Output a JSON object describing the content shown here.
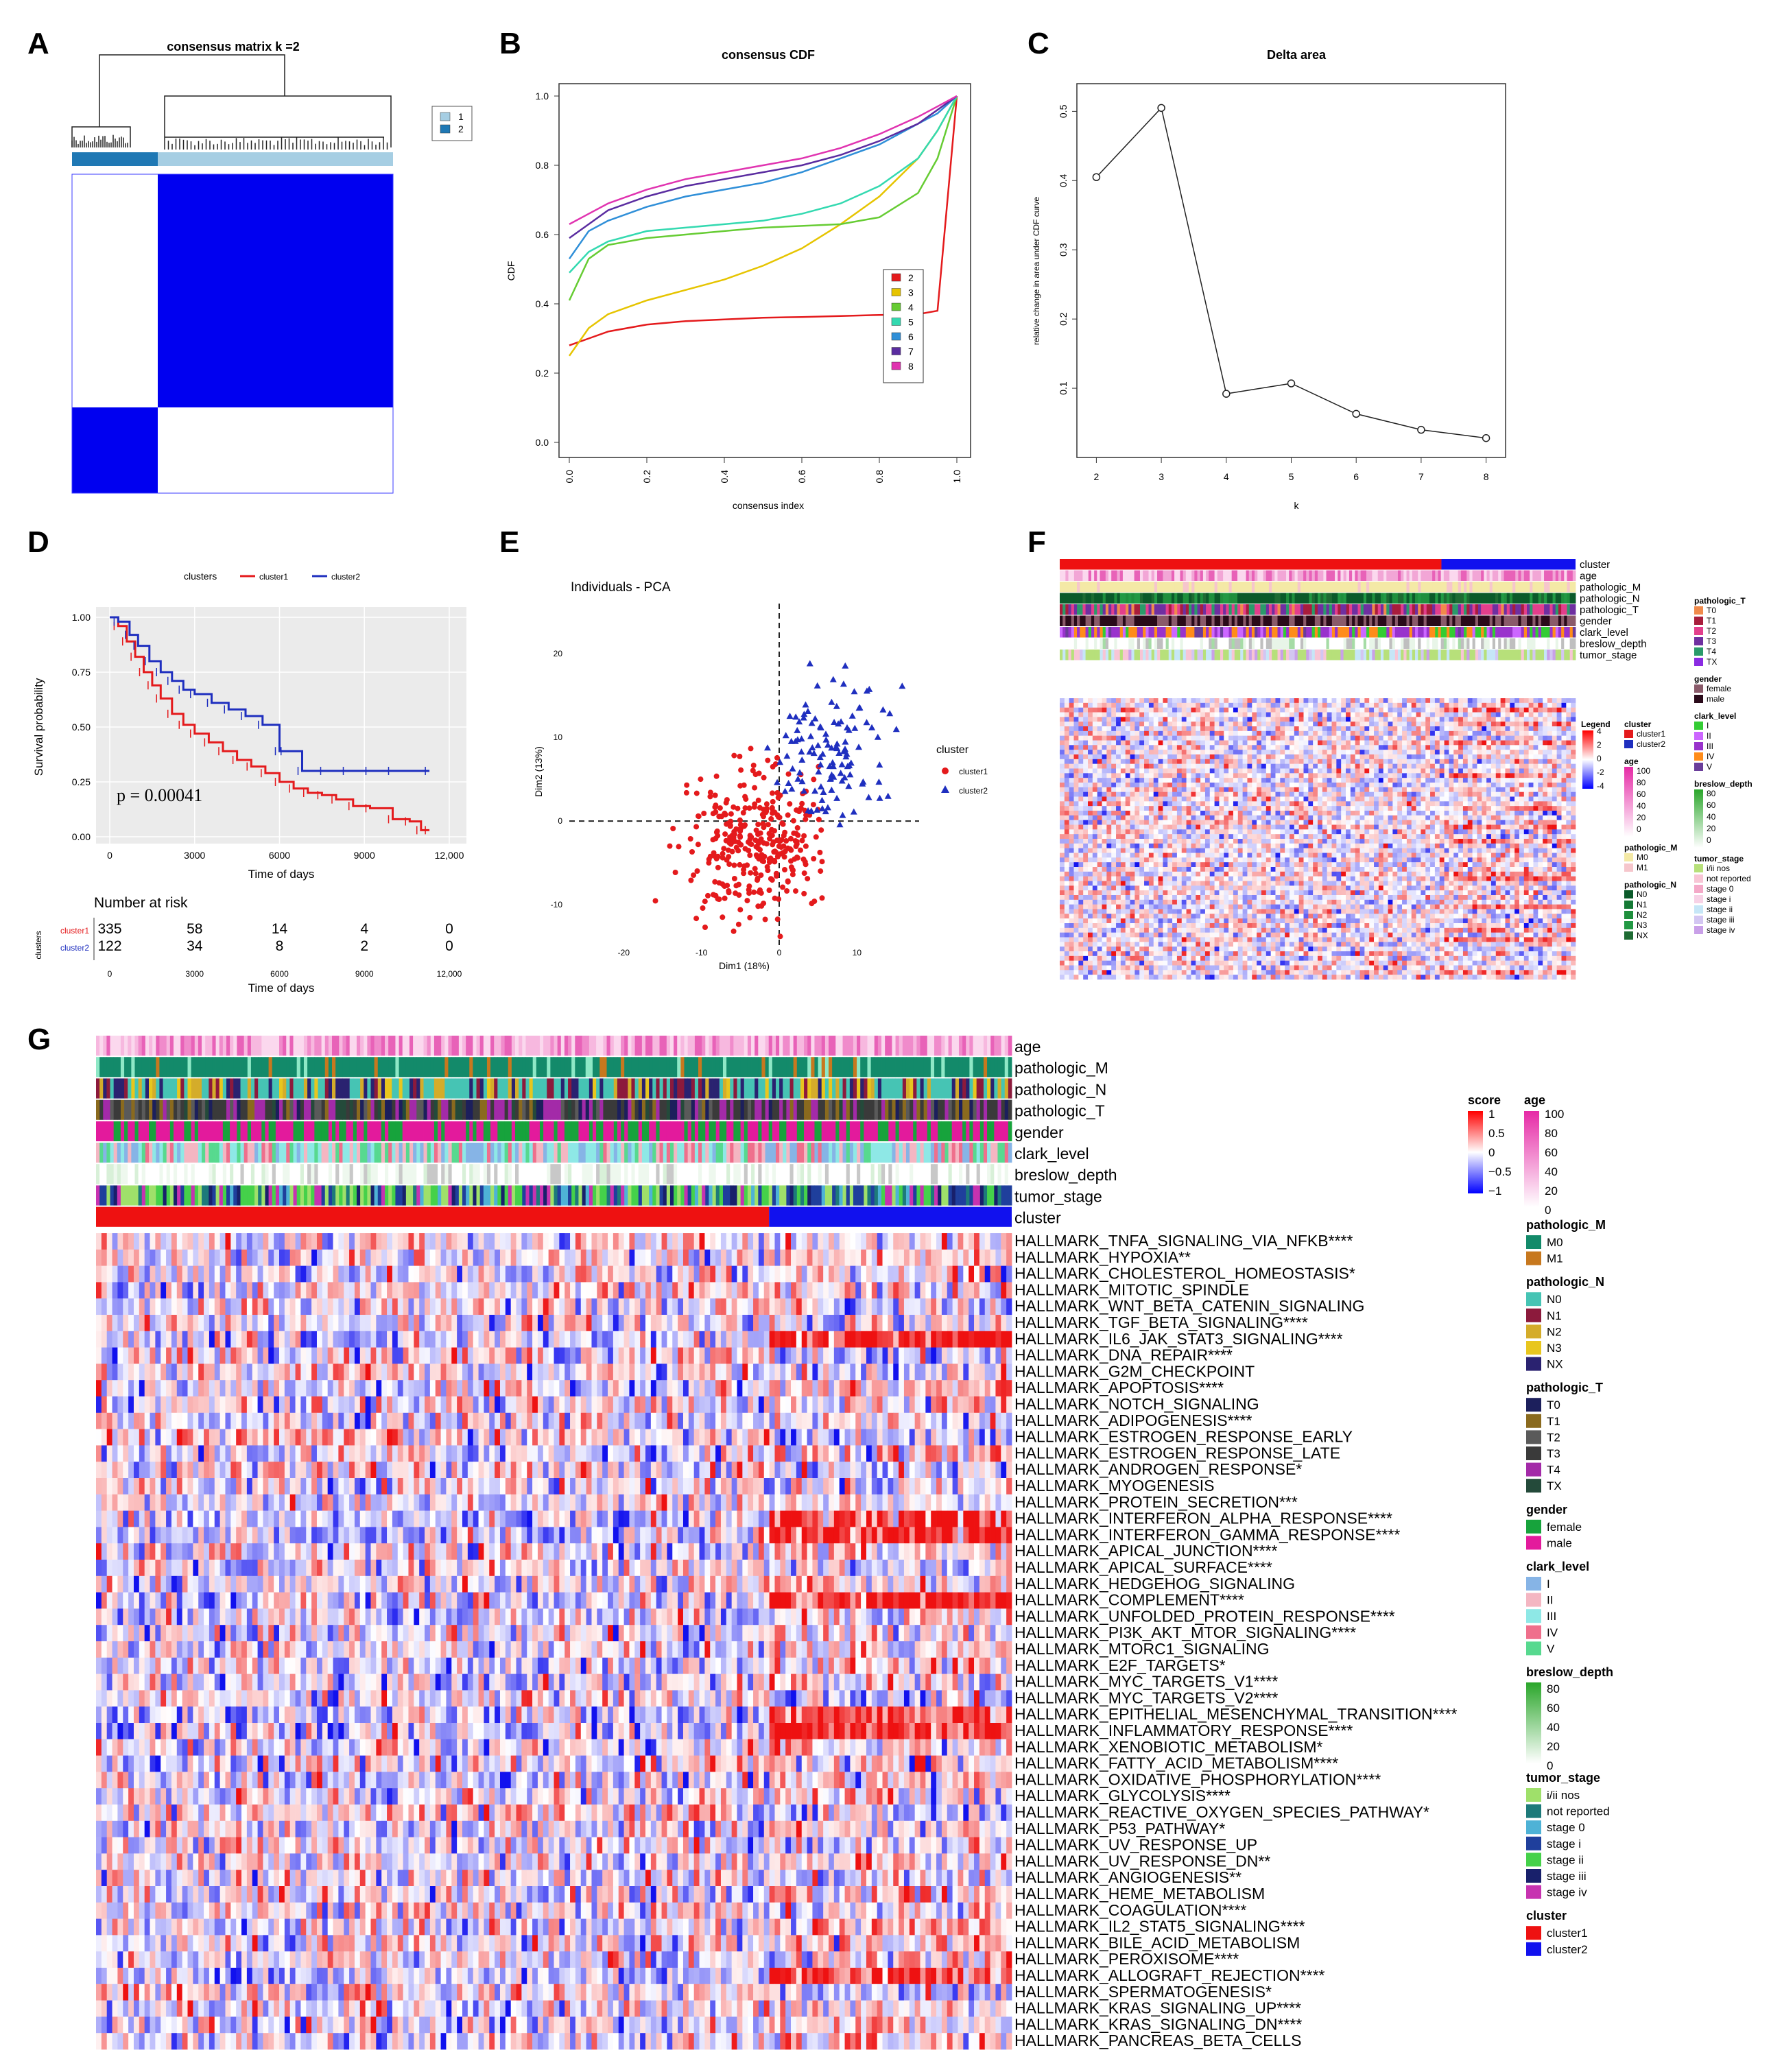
{
  "panel_labels": [
    "A",
    "B",
    "C",
    "D",
    "E",
    "F",
    "G"
  ],
  "chart_data": [
    {
      "panel": "A",
      "type": "heatmap",
      "title": "consensus matrix k =2",
      "legend": [
        "1",
        "2"
      ],
      "colors": {
        "cluster1": "#a6cee3",
        "cluster2": "#1f78b4",
        "fill": "#0000ff"
      }
    },
    {
      "panel": "B",
      "type": "line",
      "title": "consensus CDF",
      "xlabel": "consensus index",
      "ylabel": "CDF",
      "xlim": [
        0,
        1
      ],
      "ylim": [
        0,
        1
      ],
      "xticks": [
        "0.0",
        "0.2",
        "0.4",
        "0.6",
        "0.8",
        "1.0"
      ],
      "yticks": [
        "0.0",
        "0.2",
        "0.4",
        "0.6",
        "0.8",
        "1.0"
      ],
      "x": [
        0,
        0.05,
        0.1,
        0.2,
        0.3,
        0.4,
        0.5,
        0.6,
        0.7,
        0.8,
        0.9,
        0.95,
        1.0
      ],
      "series": [
        {
          "name": "2",
          "color": "#e41a1c",
          "values": [
            0.28,
            0.3,
            0.32,
            0.34,
            0.35,
            0.355,
            0.36,
            0.362,
            0.365,
            0.368,
            0.37,
            0.38,
            1.0
          ]
        },
        {
          "name": "3",
          "color": "#e6c400",
          "values": [
            0.25,
            0.33,
            0.37,
            0.41,
            0.44,
            0.47,
            0.51,
            0.56,
            0.63,
            0.71,
            0.82,
            0.9,
            1.0
          ]
        },
        {
          "name": "4",
          "color": "#66cc33",
          "values": [
            0.41,
            0.53,
            0.57,
            0.59,
            0.6,
            0.61,
            0.62,
            0.625,
            0.63,
            0.65,
            0.72,
            0.82,
            1.0
          ]
        },
        {
          "name": "5",
          "color": "#33d9b0",
          "values": [
            0.49,
            0.55,
            0.58,
            0.61,
            0.62,
            0.63,
            0.64,
            0.66,
            0.69,
            0.74,
            0.82,
            0.9,
            1.0
          ]
        },
        {
          "name": "6",
          "color": "#2f8fd8",
          "values": [
            0.53,
            0.61,
            0.64,
            0.68,
            0.71,
            0.73,
            0.75,
            0.78,
            0.82,
            0.86,
            0.92,
            0.95,
            1.0
          ]
        },
        {
          "name": "7",
          "color": "#5a2ca0",
          "values": [
            0.59,
            0.63,
            0.67,
            0.71,
            0.74,
            0.76,
            0.78,
            0.8,
            0.83,
            0.87,
            0.92,
            0.96,
            1.0
          ]
        },
        {
          "name": "8",
          "color": "#e033b0",
          "values": [
            0.63,
            0.66,
            0.69,
            0.73,
            0.76,
            0.78,
            0.8,
            0.82,
            0.85,
            0.89,
            0.94,
            0.97,
            1.0
          ]
        }
      ]
    },
    {
      "panel": "C",
      "type": "line",
      "title": "Delta area",
      "xlabel": "k",
      "ylabel": "relative change in area under CDF curve",
      "x": [
        2,
        3,
        4,
        5,
        6,
        7,
        8
      ],
      "values": [
        0.405,
        0.505,
        0.092,
        0.107,
        0.063,
        0.04,
        0.028
      ],
      "xlim": [
        1.7,
        8.3
      ],
      "ylim": [
        0.0,
        0.54
      ],
      "yticks": [
        "0.1",
        "0.2",
        "0.3",
        "0.4",
        "0.5"
      ]
    },
    {
      "panel": "D",
      "type": "line",
      "title": "clusters",
      "xlabel": "Time of days",
      "ylabel": "Survival probability",
      "xlim": [
        0,
        12000
      ],
      "ylim": [
        0,
        1
      ],
      "xticks": [
        "0",
        "3000",
        "6000",
        "9000",
        "12,000"
      ],
      "yticks": [
        "0.00",
        "0.25",
        "0.50",
        "0.75",
        "1.00"
      ],
      "pvalue": "p = 0.00041",
      "series": [
        {
          "name": "cluster1",
          "color": "#e41a1c",
          "x": [
            0,
            300,
            600,
            900,
            1200,
            1500,
            1800,
            2200,
            2600,
            3000,
            3500,
            4000,
            4500,
            5000,
            5500,
            6000,
            6500,
            7000,
            7500,
            8000,
            8600,
            9200,
            10000,
            10600,
            11000,
            11300
          ],
          "values": [
            1.0,
            0.96,
            0.89,
            0.82,
            0.75,
            0.69,
            0.63,
            0.56,
            0.51,
            0.47,
            0.43,
            0.39,
            0.35,
            0.32,
            0.29,
            0.25,
            0.22,
            0.2,
            0.19,
            0.17,
            0.14,
            0.13,
            0.08,
            0.07,
            0.03,
            0.03
          ]
        },
        {
          "name": "cluster2",
          "color": "#1f2fbf",
          "x": [
            0,
            300,
            700,
            1000,
            1400,
            1800,
            2200,
            2600,
            3000,
            3600,
            4200,
            4800,
            5400,
            6000,
            6200,
            6800,
            7600,
            8400,
            9200,
            10000,
            11300
          ],
          "values": [
            1.0,
            0.98,
            0.92,
            0.87,
            0.8,
            0.75,
            0.71,
            0.67,
            0.65,
            0.61,
            0.58,
            0.55,
            0.51,
            0.39,
            0.39,
            0.3,
            0.3,
            0.3,
            0.3,
            0.3,
            0.3
          ]
        }
      ],
      "risk_table": {
        "title": "Number at risk",
        "ylabel": "clusters",
        "times": [
          "0",
          "3000",
          "6000",
          "9000",
          "12,000"
        ],
        "rows": [
          {
            "name": "cluster1",
            "values": [
              "335",
              "58",
              "14",
              "4",
              "0"
            ]
          },
          {
            "name": "cluster2",
            "values": [
              "122",
              "34",
              "8",
              "2",
              "0"
            ]
          }
        ]
      }
    },
    {
      "panel": "E",
      "type": "scatter",
      "title": "Individuals - PCA",
      "xlabel": "Dim1 (18%)",
      "ylabel": "Dim2 (13%)",
      "xlim": [
        -27,
        18
      ],
      "ylim": [
        -15,
        26
      ],
      "xticks": [
        "-20",
        "-10",
        "0",
        "10"
      ],
      "yticks": [
        "-10",
        "0",
        "10",
        "20"
      ],
      "legend_title": "cluster",
      "series": [
        {
          "name": "cluster1",
          "color": "#e41a1c",
          "center": [
            -2.5,
            -3.0
          ],
          "spread": [
            4.5,
            4.0
          ],
          "count": 330
        },
        {
          "name": "cluster2",
          "color": "#1f2fbf",
          "center": [
            6.5,
            7.5
          ],
          "spread": [
            4.0,
            4.5
          ],
          "count": 120
        }
      ]
    },
    {
      "panel": "F",
      "type": "heatmap",
      "tracks": [
        "cluster",
        "age",
        "pathologic_M",
        "pathologic_N",
        "pathologic_T",
        "gender",
        "clark_level",
        "breslow_depth",
        "tumor_stage"
      ],
      "legend_title": "Legend",
      "legend_values": [
        "4",
        "2",
        "0",
        "-2",
        "-4"
      ],
      "legends_col1": [
        {
          "title": "cluster",
          "items": [
            {
              "label": "cluster1",
              "color": "#e41a1c"
            },
            {
              "label": "cluster2",
              "color": "#1f2fbf"
            }
          ]
        },
        {
          "title": "age",
          "scale": [
            "100",
            "80",
            "60",
            "40",
            "20",
            "0"
          ]
        },
        {
          "title": "pathologic_M",
          "items": [
            {
              "label": "M0",
              "color": "#f4e9a6"
            },
            {
              "label": "M1",
              "color": "#f6c6cc"
            }
          ]
        },
        {
          "title": "pathologic_N",
          "items": [
            {
              "label": "N0",
              "color": "#0b5a2a"
            },
            {
              "label": "N1",
              "color": "#157a35"
            },
            {
              "label": "N2",
              "color": "#1f8f3d"
            },
            {
              "label": "N3",
              "color": "#229944"
            },
            {
              "label": "NX",
              "color": "#1e6b33"
            }
          ]
        }
      ],
      "legends_col2": [
        {
          "title": "pathologic_T",
          "items": [
            {
              "label": "T0",
              "color": "#f08a4b"
            },
            {
              "label": "T1",
              "color": "#a81d3c"
            },
            {
              "label": "T2",
              "color": "#e23f8c"
            },
            {
              "label": "T3",
              "color": "#6f2fa0"
            },
            {
              "label": "T4",
              "color": "#2a9a6a"
            },
            {
              "label": "TX",
              "color": "#8a2be2"
            }
          ]
        },
        {
          "title": "gender",
          "items": [
            {
              "label": "female",
              "color": "#8a5a6a"
            },
            {
              "label": "male",
              "color": "#2a0a1a"
            }
          ]
        },
        {
          "title": "clark_level",
          "items": [
            {
              "label": "I",
              "color": "#33cc33"
            },
            {
              "label": "II",
              "color": "#cc66ff"
            },
            {
              "label": "III",
              "color": "#9933cc"
            },
            {
              "label": "IV",
              "color": "#ff8c1a"
            },
            {
              "label": "V",
              "color": "#6a3d9a"
            }
          ]
        },
        {
          "title": "breslow_depth",
          "scale": [
            "80",
            "60",
            "40",
            "20",
            "0"
          ]
        },
        {
          "title": "tumor_stage",
          "items": [
            {
              "label": "i/ii nos",
              "color": "#b7e07a"
            },
            {
              "label": "not reported",
              "color": "#f8c5d5"
            },
            {
              "label": "stage 0",
              "color": "#f4a9c8"
            },
            {
              "label": "stage i",
              "color": "#f7d2e6"
            },
            {
              "label": "stage ii",
              "color": "#c6e6f7"
            },
            {
              "label": "stage iii",
              "color": "#d3c6f2"
            },
            {
              "label": "stage iv",
              "color": "#c9a0e8"
            }
          ]
        }
      ]
    },
    {
      "panel": "G",
      "type": "heatmap",
      "tracks": [
        "age",
        "pathologic_M",
        "pathologic_N",
        "pathologic_T",
        "gender",
        "clark_level",
        "breslow_depth",
        "tumor_stage",
        "cluster"
      ],
      "rows": [
        "HALLMARK_TNFA_SIGNALING_VIA_NFKB****",
        "HALLMARK_HYPOXIA**",
        "HALLMARK_CHOLESTEROL_HOMEOSTASIS*",
        "HALLMARK_MITOTIC_SPINDLE",
        "HALLMARK_WNT_BETA_CATENIN_SIGNALING",
        "HALLMARK_TGF_BETA_SIGNALING****",
        "HALLMARK_IL6_JAK_STAT3_SIGNALING****",
        "HALLMARK_DNA_REPAIR****",
        "HALLMARK_G2M_CHECKPOINT",
        "HALLMARK_APOPTOSIS****",
        "HALLMARK_NOTCH_SIGNALING",
        "HALLMARK_ADIPOGENESIS****",
        "HALLMARK_ESTROGEN_RESPONSE_EARLY",
        "HALLMARK_ESTROGEN_RESPONSE_LATE",
        "HALLMARK_ANDROGEN_RESPONSE*",
        "HALLMARK_MYOGENESIS",
        "HALLMARK_PROTEIN_SECRETION***",
        "HALLMARK_INTERFERON_ALPHA_RESPONSE****",
        "HALLMARK_INTERFERON_GAMMA_RESPONSE****",
        "HALLMARK_APICAL_JUNCTION****",
        "HALLMARK_APICAL_SURFACE****",
        "HALLMARK_HEDGEHOG_SIGNALING",
        "HALLMARK_COMPLEMENT****",
        "HALLMARK_UNFOLDED_PROTEIN_RESPONSE****",
        "HALLMARK_PI3K_AKT_MTOR_SIGNALING****",
        "HALLMARK_MTORC1_SIGNALING",
        "HALLMARK_E2F_TARGETS*",
        "HALLMARK_MYC_TARGETS_V1****",
        "HALLMARK_MYC_TARGETS_V2****",
        "HALLMARK_EPITHELIAL_MESENCHYMAL_TRANSITION****",
        "HALLMARK_INFLAMMATORY_RESPONSE****",
        "HALLMARK_XENOBIOTIC_METABOLISM*",
        "HALLMARK_FATTY_ACID_METABOLISM****",
        "HALLMARK_OXIDATIVE_PHOSPHORYLATION****",
        "HALLMARK_GLYCOLYSIS****",
        "HALLMARK_REACTIVE_OXYGEN_SPECIES_PATHWAY*",
        "HALLMARK_P53_PATHWAY*",
        "HALLMARK_UV_RESPONSE_UP",
        "HALLMARK_UV_RESPONSE_DN**",
        "HALLMARK_ANGIOGENESIS**",
        "HALLMARK_HEME_METABOLISM",
        "HALLMARK_COAGULATION****",
        "HALLMARK_IL2_STAT5_SIGNALING****",
        "HALLMARK_BILE_ACID_METABOLISM",
        "HALLMARK_PEROXISOME****",
        "HALLMARK_ALLOGRAFT_REJECTION****",
        "HALLMARK_SPERMATOGENESIS*",
        "HALLMARK_KRAS_SIGNALING_UP****",
        "HALLMARK_KRAS_SIGNALING_DN****",
        "HALLMARK_PANCREAS_BETA_CELLS"
      ],
      "hot_rows": [
        6,
        17,
        18,
        22,
        29,
        30,
        45
      ],
      "score_legend": {
        "title": "score",
        "values": [
          "1",
          "0.5",
          "0",
          "−0.5",
          "−1"
        ]
      },
      "age_legend": {
        "title": "age",
        "values": [
          "100",
          "80",
          "60",
          "40",
          "20",
          "0"
        ]
      },
      "legends": [
        {
          "title": "pathologic_M",
          "items": [
            {
              "label": "M0",
              "color": "#138a6a"
            },
            {
              "label": "M1",
              "color": "#c7781e"
            }
          ]
        },
        {
          "title": "pathologic_N",
          "items": [
            {
              "label": "N0",
              "color": "#46c4b4"
            },
            {
              "label": "N1",
              "color": "#8c1a3c"
            },
            {
              "label": "N2",
              "color": "#d4ac2a"
            },
            {
              "label": "N3",
              "color": "#e8c61e"
            },
            {
              "label": "NX",
              "color": "#2a2270"
            }
          ]
        },
        {
          "title": "pathologic_T",
          "items": [
            {
              "label": "T0",
              "color": "#1c1f5c"
            },
            {
              "label": "T1",
              "color": "#8a6a1e"
            },
            {
              "label": "T2",
              "color": "#5a5a5a"
            },
            {
              "label": "T3",
              "color": "#3a3a3a"
            },
            {
              "label": "T4",
              "color": "#a32aa8"
            },
            {
              "label": "TX",
              "color": "#244a3a"
            }
          ]
        },
        {
          "title": "gender",
          "items": [
            {
              "label": "female",
              "color": "#17a33c"
            },
            {
              "label": "male",
              "color": "#e31a9c"
            }
          ]
        },
        {
          "title": "clark_level",
          "items": [
            {
              "label": "I",
              "color": "#86b4e6"
            },
            {
              "label": "II",
              "color": "#f4b6c2"
            },
            {
              "label": "III",
              "color": "#8ee8e6"
            },
            {
              "label": "IV",
              "color": "#ef6f8c"
            },
            {
              "label": "V",
              "color": "#57d98f"
            }
          ]
        },
        {
          "title": "breslow_depth",
          "scale": [
            "80",
            "60",
            "40",
            "20",
            "0"
          ]
        },
        {
          "title": "tumor_stage",
          "items": [
            {
              "label": "i/ii nos",
              "color": "#9fe06a"
            },
            {
              "label": "not reported",
              "color": "#1d7a7a"
            },
            {
              "label": "stage 0",
              "color": "#4eb2d6"
            },
            {
              "label": "stage i",
              "color": "#1f3f9c"
            },
            {
              "label": "stage ii",
              "color": "#45d14a"
            },
            {
              "label": "stage iii",
              "color": "#18206b"
            },
            {
              "label": "stage iv",
              "color": "#c732b0"
            }
          ]
        },
        {
          "title": "cluster",
          "items": [
            {
              "label": "cluster1",
              "color": "#ee1111"
            },
            {
              "label": "cluster2",
              "color": "#1111ee"
            }
          ]
        }
      ]
    }
  ]
}
